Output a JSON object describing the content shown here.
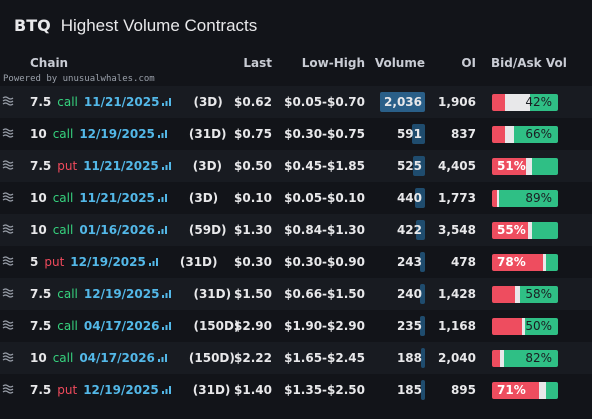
{
  "header": {
    "ticker": "BTQ",
    "title": "Highest Volume Contracts"
  },
  "table": {
    "columns": [
      "Chain",
      "Last",
      "Low-High",
      "Volume",
      "OI",
      "Bid/Ask Vol"
    ],
    "credit": "Powered by unusualwhales.com",
    "rows": [
      {
        "strike": "7.5",
        "type": "call",
        "expiry": "11/21/2025",
        "dte": "(3D)",
        "last": "$0.62",
        "low_high": "$0.05-$0.70",
        "volume": 2036,
        "volume_label": "2,036",
        "oi": "1,906",
        "bid_ask": {
          "label": "42%",
          "red": 20,
          "white": 38,
          "green": 42
        }
      },
      {
        "strike": "10",
        "type": "call",
        "expiry": "12/19/2025",
        "dte": "(31D)",
        "last": "$0.75",
        "low_high": "$0.30-$0.75",
        "volume": 591,
        "volume_label": "591",
        "oi": "837",
        "bid_ask": {
          "label": "66%",
          "red": 20,
          "white": 14,
          "green": 66
        }
      },
      {
        "strike": "7.5",
        "type": "put",
        "expiry": "11/21/2025",
        "dte": "(3D)",
        "last": "$0.50",
        "low_high": "$0.45-$1.85",
        "volume": 525,
        "volume_label": "525",
        "oi": "4,405",
        "bid_ask": {
          "label": "51%",
          "red": 51,
          "white": 10,
          "green": 39
        }
      },
      {
        "strike": "10",
        "type": "call",
        "expiry": "11/21/2025",
        "dte": "(3D)",
        "last": "$0.10",
        "low_high": "$0.05-$0.10",
        "volume": 440,
        "volume_label": "440",
        "oi": "1,773",
        "bid_ask": {
          "label": "89%",
          "red": 8,
          "white": 3,
          "green": 89
        }
      },
      {
        "strike": "10",
        "type": "call",
        "expiry": "01/16/2026",
        "dte": "(59D)",
        "last": "$1.30",
        "low_high": "$0.84-$1.30",
        "volume": 422,
        "volume_label": "422",
        "oi": "3,548",
        "bid_ask": {
          "label": "55%",
          "red": 55,
          "white": 5,
          "green": 40
        }
      },
      {
        "strike": "5",
        "type": "put",
        "expiry": "12/19/2025",
        "dte": "(31D)",
        "last": "$0.30",
        "low_high": "$0.30-$0.90",
        "volume": 243,
        "volume_label": "243",
        "oi": "478",
        "bid_ask": {
          "label": "78%",
          "red": 78,
          "white": 4,
          "green": 18
        }
      },
      {
        "strike": "7.5",
        "type": "call",
        "expiry": "12/19/2025",
        "dte": "(31D)",
        "last": "$1.50",
        "low_high": "$0.66-$1.50",
        "volume": 240,
        "volume_label": "240",
        "oi": "1,428",
        "bid_ask": {
          "label": "58%",
          "red": 35,
          "white": 7,
          "green": 58
        }
      },
      {
        "strike": "7.5",
        "type": "call",
        "expiry": "04/17/2026",
        "dte": "(150D)",
        "last": "$2.90",
        "low_high": "$1.90-$2.90",
        "volume": 235,
        "volume_label": "235",
        "oi": "1,168",
        "bid_ask": {
          "label": "50%",
          "red": 45,
          "white": 5,
          "green": 50
        }
      },
      {
        "strike": "10",
        "type": "call",
        "expiry": "04/17/2026",
        "dte": "(150D)",
        "last": "$2.22",
        "low_high": "$1.65-$2.45",
        "volume": 188,
        "volume_label": "188",
        "oi": "2,040",
        "bid_ask": {
          "label": "82%",
          "red": 12,
          "white": 6,
          "green": 82
        }
      },
      {
        "strike": "7.5",
        "type": "put",
        "expiry": "12/19/2025",
        "dte": "(31D)",
        "last": "$1.40",
        "low_high": "$1.35-$2.50",
        "volume": 185,
        "volume_label": "185",
        "oi": "895",
        "bid_ask": {
          "label": "71%",
          "red": 71,
          "white": 11,
          "green": 18
        }
      }
    ]
  }
}
